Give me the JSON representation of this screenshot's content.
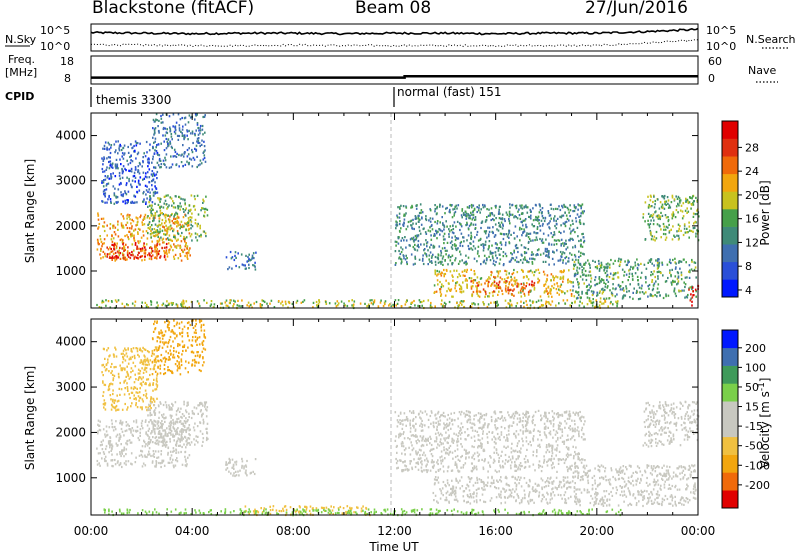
{
  "header": {
    "station": "Blackstone (fitACF)",
    "beam": "Beam 08",
    "date": "27/Jun/2016"
  },
  "colors": {
    "power_scale": [
      "#0018ff",
      "#2a4fd8",
      "#3f6fb0",
      "#3f8a78",
      "#46a04a",
      "#c8c21e",
      "#f2a60e",
      "#f06a0a",
      "#e03010",
      "#e00000"
    ],
    "velocity_scale": [
      "#e00000",
      "#f06a0a",
      "#f2a60e",
      "#f0c040",
      "#c8c8c0",
      "#c8c8c0",
      "#7ad04a",
      "#3f9a5a",
      "#3f6fb0",
      "#0018ff"
    ]
  },
  "chart_data": [
    {
      "type": "line",
      "panel": "noise",
      "left_label": "N.Sky",
      "right_label": "N.Search",
      "left_ticks": [
        "10^5",
        "10^0"
      ],
      "right_ticks": [
        "10^5",
        "10^0"
      ],
      "x": [
        0,
        2,
        4,
        6,
        8,
        10,
        12,
        14,
        16,
        18,
        20,
        22,
        24
      ],
      "series": [
        {
          "style": "solid",
          "values": [
            3.4,
            3.3,
            3.2,
            3.3,
            3.3,
            3.2,
            3.3,
            3.3,
            3.2,
            3.3,
            3.3,
            3.6,
            4.0
          ]
        },
        {
          "style": "dotted",
          "values": [
            1.2,
            1.1,
            1.0,
            1.0,
            1.1,
            1.0,
            1.0,
            1.0,
            1.0,
            1.0,
            1.0,
            1.5,
            2.0
          ]
        }
      ]
    },
    {
      "type": "line",
      "panel": "frequency",
      "left_label": "Freq.",
      "left_unit": "[MHz]",
      "right_label": "Nave",
      "left_ticks": [
        "18",
        "8"
      ],
      "right_ticks": [
        "60",
        "0"
      ],
      "ylim": [
        8,
        18
      ],
      "x": [
        0,
        12.4,
        12.4,
        24
      ],
      "series": [
        {
          "style": "solid",
          "values": [
            10.3,
            10.3,
            10.8,
            10.8
          ]
        }
      ]
    },
    {
      "type": "table",
      "panel": "cpid",
      "label": "CPID",
      "segments": [
        {
          "start": 0,
          "end": 12,
          "name": "themis 3300"
        },
        {
          "start": 12,
          "end": 24,
          "name": "normal (fast) 151"
        }
      ]
    },
    {
      "type": "heatmap",
      "panel": "power",
      "ylabel": "Slant Range [km]",
      "colorbar_label": "Power [dB]",
      "colorbar_ticks": [
        "28",
        "24",
        "20",
        "16",
        "12",
        "8",
        "4"
      ],
      "yticks": [
        "4000",
        "3000",
        "2000",
        "1000"
      ],
      "xlim": [
        0,
        24
      ],
      "ylim": [
        180,
        4500
      ],
      "regions": [
        {
          "t0": 0.2,
          "t1": 3.9,
          "r0": 1250,
          "r1": 2300,
          "v": 20
        },
        {
          "t0": 0.6,
          "t1": 3.0,
          "r0": 1300,
          "r1": 1650,
          "v": 27
        },
        {
          "t0": 0.4,
          "t1": 2.6,
          "r0": 2500,
          "r1": 3900,
          "v": 6
        },
        {
          "t0": 2.2,
          "t1": 4.6,
          "r0": 1700,
          "r1": 2700,
          "v": 14
        },
        {
          "t0": 2.4,
          "t1": 4.5,
          "r0": 3300,
          "r1": 4500,
          "v": 8
        },
        {
          "t0": 5.3,
          "t1": 6.5,
          "r0": 1050,
          "r1": 1450,
          "v": 8
        },
        {
          "t0": 0.2,
          "t1": 21.0,
          "r0": 200,
          "r1": 380,
          "v": 16
        },
        {
          "t0": 12.0,
          "t1": 19.5,
          "r0": 1150,
          "r1": 2500,
          "v": 10
        },
        {
          "t0": 13.5,
          "t1": 19.0,
          "r0": 450,
          "r1": 1050,
          "v": 18
        },
        {
          "t0": 15.0,
          "t1": 17.5,
          "r0": 550,
          "r1": 800,
          "v": 24
        },
        {
          "t0": 19.0,
          "t1": 23.9,
          "r0": 400,
          "r1": 1300,
          "v": 12
        },
        {
          "t0": 21.8,
          "t1": 24.0,
          "r0": 1700,
          "r1": 2700,
          "v": 14
        },
        {
          "t0": 23.6,
          "t1": 24.0,
          "r0": 250,
          "r1": 700,
          "v": 28
        }
      ]
    },
    {
      "type": "heatmap",
      "panel": "velocity",
      "ylabel": "Slant Range [km]",
      "xlabel": "Time UT",
      "colorbar_label": "Velocity [m s",
      "colorbar_label_sup": "-1",
      "colorbar_ticks": [
        "200",
        "100",
        "50",
        "15",
        "-15",
        "-50",
        "-100",
        "-200"
      ],
      "yticks": [
        "4000",
        "3000",
        "2000",
        "1000"
      ],
      "xticks": [
        "00:00",
        "04:00",
        "08:00",
        "12:00",
        "16:00",
        "20:00",
        "00:00"
      ],
      "xlim": [
        0,
        24
      ],
      "ylim": [
        180,
        4500
      ],
      "regions": [
        {
          "t0": 0.2,
          "t1": 3.9,
          "r0": 1250,
          "r1": 2300,
          "v": 0
        },
        {
          "t0": 0.4,
          "t1": 2.6,
          "r0": 2500,
          "r1": 3900,
          "v": -30
        },
        {
          "t0": 2.2,
          "t1": 4.6,
          "r0": 1700,
          "r1": 2700,
          "v": -10
        },
        {
          "t0": 2.4,
          "t1": 4.5,
          "r0": 3300,
          "r1": 4500,
          "v": -60
        },
        {
          "t0": 5.3,
          "t1": 6.5,
          "r0": 1050,
          "r1": 1450,
          "v": 0
        },
        {
          "t0": 6.0,
          "t1": 11.0,
          "r0": 200,
          "r1": 400,
          "v": -40
        },
        {
          "t0": 0.2,
          "t1": 21.0,
          "r0": 200,
          "r1": 330,
          "v": 30
        },
        {
          "t0": 12.0,
          "t1": 19.5,
          "r0": 1150,
          "r1": 2500,
          "v": 0
        },
        {
          "t0": 13.5,
          "t1": 19.0,
          "r0": 450,
          "r1": 1050,
          "v": 0
        },
        {
          "t0": 19.0,
          "t1": 23.9,
          "r0": 400,
          "r1": 1300,
          "v": 0
        },
        {
          "t0": 21.8,
          "t1": 24.0,
          "r0": 1700,
          "r1": 2700,
          "v": 0
        }
      ]
    }
  ]
}
